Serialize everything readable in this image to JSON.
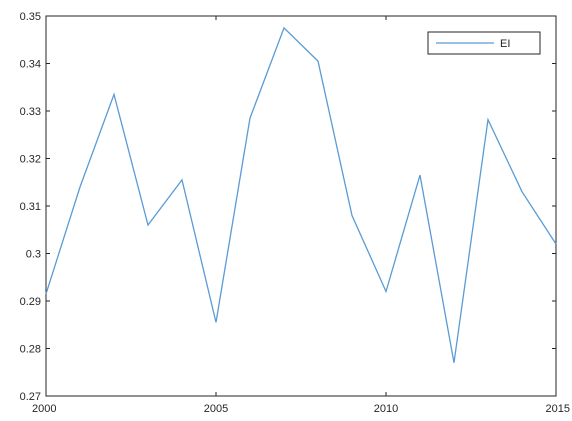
{
  "chart_data": {
    "type": "line",
    "x": [
      2000,
      2001,
      2002,
      2003,
      2004,
      2005,
      2006,
      2007,
      2008,
      2009,
      2010,
      2011,
      2012,
      2013,
      2014,
      2015
    ],
    "series": [
      {
        "name": "EI",
        "color": "#5a9bd4",
        "values": [
          0.2915,
          0.314,
          0.3335,
          0.306,
          0.3155,
          0.2855,
          0.3285,
          0.3475,
          0.3405,
          0.308,
          0.292,
          0.3165,
          0.277,
          0.3282,
          0.313,
          0.302
        ]
      }
    ],
    "xlim": [
      2000,
      2015
    ],
    "ylim": [
      0.27,
      0.35
    ],
    "x_ticks": [
      2000,
      2005,
      2010,
      2015
    ],
    "y_ticks": [
      0.27,
      0.28,
      0.29,
      0.3,
      0.31,
      0.32,
      0.33,
      0.34,
      0.35
    ],
    "x_tick_labels": [
      "2000",
      "2005",
      "2010",
      "2015"
    ],
    "y_tick_labels": [
      "0.27",
      "0.28",
      "0.29",
      "0.3",
      "0.31",
      "0.32",
      "0.33",
      "0.34",
      "0.35"
    ],
    "legend_position": "top-right",
    "grid": false,
    "box": true,
    "axis_color": "#262626"
  }
}
